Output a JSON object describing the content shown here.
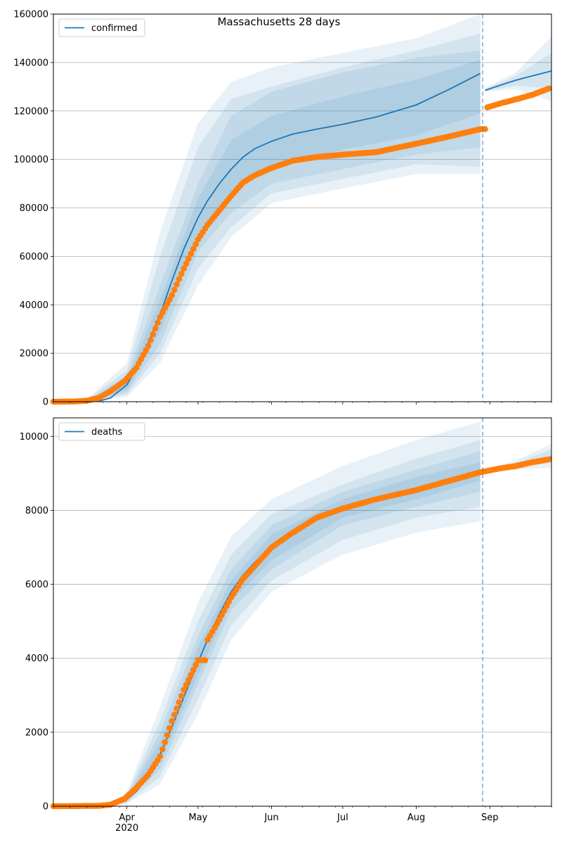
{
  "chart_data": [
    {
      "type": "line",
      "title": "Massachusetts 28 days",
      "xlabel": "",
      "ylabel": "",
      "x_ticks": [
        "Apr\n2020",
        "May",
        "Jun",
        "Jul",
        "Aug",
        "Sep"
      ],
      "x_range": [
        "2020-03-01",
        "2020-09-27"
      ],
      "y_ticks": [
        0,
        20000,
        40000,
        60000,
        80000,
        100000,
        120000,
        140000,
        160000
      ],
      "ylim": [
        0,
        160000
      ],
      "grid": "horizontal",
      "legend": {
        "position": "top-left",
        "entries": [
          "confirmed"
        ]
      },
      "forecast_start": "2020-08-29",
      "series": [
        {
          "name": "confirmed",
          "kind": "model-fit",
          "color": "#1f77b4",
          "x": [
            "2020-03-01",
            "2020-03-15",
            "2020-03-20",
            "2020-03-25",
            "2020-04-01",
            "2020-04-05",
            "2020-04-10",
            "2020-04-15",
            "2020-04-20",
            "2020-04-25",
            "2020-05-01",
            "2020-05-05",
            "2020-05-10",
            "2020-05-15",
            "2020-05-20",
            "2020-05-25",
            "2020-06-01",
            "2020-06-10",
            "2020-06-20",
            "2020-07-01",
            "2020-07-15",
            "2020-08-01",
            "2020-08-15",
            "2020-08-28"
          ],
          "values": [
            0,
            0,
            200,
            1500,
            7000,
            14000,
            24000,
            36000,
            50000,
            63000,
            76000,
            83000,
            90000,
            96000,
            101000,
            104500,
            107500,
            110500,
            112500,
            114500,
            117500,
            122500,
            129000,
            135500
          ]
        },
        {
          "name": "confirmed",
          "kind": "forecast",
          "color": "#1f77b4",
          "x": [
            "2020-08-30",
            "2020-09-05",
            "2020-09-12",
            "2020-09-19",
            "2020-09-27"
          ],
          "values": [
            128500,
            130500,
            132700,
            134500,
            136500
          ]
        },
        {
          "name": "confirmed",
          "kind": "observed",
          "color": "#ff7f0e",
          "x": [
            "2020-03-01",
            "2020-03-10",
            "2020-03-15",
            "2020-03-20",
            "2020-03-25",
            "2020-03-31",
            "2020-04-05",
            "2020-04-10",
            "2020-04-15",
            "2020-04-20",
            "2020-04-25",
            "2020-05-01",
            "2020-05-05",
            "2020-05-10",
            "2020-05-15",
            "2020-05-20",
            "2020-05-25",
            "2020-06-01",
            "2020-06-10",
            "2020-06-20",
            "2020-07-01",
            "2020-07-15",
            "2020-08-01",
            "2020-08-15",
            "2020-08-28",
            "2020-08-31",
            "2020-09-05",
            "2020-09-12",
            "2020-09-19",
            "2020-09-26"
          ],
          "values": [
            0,
            100,
            400,
            1500,
            4300,
            8500,
            14000,
            23000,
            35000,
            44000,
            55000,
            67000,
            73000,
            79000,
            85000,
            90500,
            93500,
            96500,
            99500,
            101000,
            102000,
            103000,
            106500,
            109500,
            112500,
            121500,
            123000,
            124800,
            126700,
            129300
          ]
        }
      ],
      "bands": [
        {
          "color": "#1f77b4",
          "x": [
            "2020-03-15",
            "2020-04-01",
            "2020-04-15",
            "2020-05-01",
            "2020-05-15",
            "2020-06-01",
            "2020-07-01",
            "2020-08-01",
            "2020-08-28"
          ],
          "upper": [
            400,
            11000,
            48000,
            90000,
            118000,
            128000,
            136000,
            142000,
            145000
          ],
          "lower": [
            0,
            4000,
            24000,
            62000,
            78000,
            90000,
            96000,
            102000,
            105000
          ]
        },
        {
          "color": "#1f77b4",
          "x": [
            "2020-03-15",
            "2020-04-01",
            "2020-04-15",
            "2020-05-01",
            "2020-05-15",
            "2020-06-01",
            "2020-07-01",
            "2020-08-01",
            "2020-08-28"
          ],
          "upper": [
            300,
            9000,
            42000,
            84000,
            108000,
            118000,
            126000,
            133000,
            141000
          ],
          "lower": [
            0,
            5000,
            29000,
            68000,
            86000,
            97000,
            104000,
            110000,
            119000
          ]
        },
        {
          "color": "#1f77b4",
          "x": [
            "2020-03-15",
            "2020-04-01",
            "2020-04-15",
            "2020-05-01",
            "2020-05-15",
            "2020-06-01",
            "2020-07-01",
            "2020-08-01",
            "2020-08-28"
          ],
          "upper": [
            700,
            13000,
            60000,
            105000,
            125000,
            130000,
            138000,
            145000,
            152000
          ],
          "lower": [
            0,
            3000,
            20000,
            55000,
            72000,
            86000,
            92000,
            98000,
            97000
          ]
        },
        {
          "color": "#1f77b4",
          "x": [
            "2020-03-15",
            "2020-04-01",
            "2020-04-15",
            "2020-05-01",
            "2020-05-15",
            "2020-06-01",
            "2020-07-01",
            "2020-08-01",
            "2020-08-28"
          ],
          "upper": [
            1000,
            16000,
            70000,
            115000,
            132000,
            138000,
            144000,
            150000,
            160000
          ],
          "lower": [
            0,
            2000,
            16000,
            48000,
            68000,
            82000,
            88000,
            94000,
            94000
          ]
        },
        {
          "color": "#1f77b4",
          "x": [
            "2020-08-30",
            "2020-09-12",
            "2020-09-27"
          ],
          "upper": [
            129500,
            136000,
            150500
          ],
          "lower": [
            128000,
            129000,
            124000
          ]
        },
        {
          "color": "#1f77b4",
          "x": [
            "2020-08-30",
            "2020-09-12",
            "2020-09-27"
          ],
          "upper": [
            129000,
            134500,
            144000
          ],
          "lower": [
            128200,
            130500,
            129000
          ]
        }
      ]
    },
    {
      "type": "line",
      "title": "",
      "xlabel": "",
      "ylabel": "",
      "x_ticks": [
        "Apr\n2020",
        "May",
        "Jun",
        "Jul",
        "Aug",
        "Sep"
      ],
      "x_range": [
        "2020-03-01",
        "2020-09-27"
      ],
      "y_ticks": [
        0,
        2000,
        4000,
        6000,
        8000,
        10000
      ],
      "ylim": [
        0,
        10500
      ],
      "grid": "horizontal",
      "legend": {
        "position": "top-left",
        "entries": [
          "deaths"
        ]
      },
      "forecast_start": "2020-08-29",
      "series": [
        {
          "name": "deaths",
          "kind": "model-fit",
          "color": "#1f77b4",
          "x": [
            "2020-03-01",
            "2020-03-25",
            "2020-04-01",
            "2020-04-05",
            "2020-04-10",
            "2020-04-15",
            "2020-04-20",
            "2020-04-25",
            "2020-05-01",
            "2020-05-05",
            "2020-05-10",
            "2020-05-15",
            "2020-05-20",
            "2020-05-25",
            "2020-06-01",
            "2020-06-10",
            "2020-06-20",
            "2020-07-01",
            "2020-07-15",
            "2020-08-01",
            "2020-08-15",
            "2020-08-28"
          ],
          "values": [
            0,
            50,
            180,
            400,
            800,
            1400,
            2150,
            2950,
            3900,
            4500,
            5200,
            5800,
            6250,
            6600,
            7000,
            7450,
            7800,
            8080,
            8350,
            8600,
            8850,
            9050
          ]
        },
        {
          "name": "deaths",
          "kind": "forecast",
          "color": "#1f77b4",
          "x": [
            "2020-08-30",
            "2020-09-05",
            "2020-09-12",
            "2020-09-19",
            "2020-09-27"
          ],
          "values": [
            9070,
            9140,
            9230,
            9330,
            9450
          ]
        },
        {
          "name": "deaths",
          "kind": "observed",
          "color": "#ff7f0e",
          "x": [
            "2020-03-01",
            "2020-03-20",
            "2020-03-25",
            "2020-03-31",
            "2020-04-05",
            "2020-04-10",
            "2020-04-15",
            "2020-04-20",
            "2020-04-25",
            "2020-05-01",
            "2020-05-05",
            "2020-05-10",
            "2020-05-15",
            "2020-05-20",
            "2020-05-25",
            "2020-06-01",
            "2020-06-10",
            "2020-06-20",
            "2020-07-01",
            "2020-07-15",
            "2020-08-01",
            "2020-08-15",
            "2020-08-28",
            "2020-09-05",
            "2020-09-12",
            "2020-09-19",
            "2020-09-26"
          ],
          "values": [
            0,
            10,
            40,
            200,
            500,
            850,
            1350,
            2300,
            3150,
            3950,
            4500,
            5050,
            5650,
            6150,
            6500,
            7000,
            7400,
            7800,
            8050,
            8300,
            8550,
            8800,
            9030,
            9130,
            9200,
            9300,
            9380
          ]
        }
      ],
      "bands": [
        {
          "color": "#1f77b4",
          "x": [
            "2020-03-25",
            "2020-04-01",
            "2020-04-15",
            "2020-05-01",
            "2020-05-15",
            "2020-06-01",
            "2020-07-01",
            "2020-08-01",
            "2020-08-28"
          ],
          "upper": [
            60,
            260,
            2000,
            4600,
            6400,
            7600,
            8500,
            9100,
            9600
          ],
          "lower": [
            40,
            120,
            1000,
            3300,
            5300,
            6400,
            7600,
            8100,
            8500
          ]
        },
        {
          "color": "#1f77b4",
          "x": [
            "2020-03-25",
            "2020-04-01",
            "2020-04-15",
            "2020-05-01",
            "2020-05-15",
            "2020-06-01",
            "2020-07-01",
            "2020-08-01",
            "2020-08-28"
          ],
          "upper": [
            55,
            230,
            1750,
            4300,
            6100,
            7350,
            8300,
            8900,
            9300
          ],
          "lower": [
            45,
            150,
            1200,
            3550,
            5550,
            6650,
            7800,
            8300,
            8800
          ]
        },
        {
          "color": "#1f77b4",
          "x": [
            "2020-03-25",
            "2020-04-01",
            "2020-04-15",
            "2020-05-01",
            "2020-05-15",
            "2020-06-01",
            "2020-07-01",
            "2020-08-01",
            "2020-08-28"
          ],
          "upper": [
            70,
            320,
            2300,
            5000,
            6800,
            7900,
            8700,
            9400,
            9900
          ],
          "lower": [
            30,
            90,
            800,
            2900,
            4900,
            6100,
            7200,
            7800,
            8100
          ]
        },
        {
          "color": "#1f77b4",
          "x": [
            "2020-03-25",
            "2020-04-01",
            "2020-04-15",
            "2020-05-01",
            "2020-05-15",
            "2020-06-01",
            "2020-07-01",
            "2020-08-01",
            "2020-08-28"
          ],
          "upper": [
            80,
            380,
            2700,
            5500,
            7300,
            8300,
            9200,
            9900,
            10400
          ],
          "lower": [
            20,
            70,
            600,
            2500,
            4500,
            5800,
            6800,
            7400,
            7700
          ]
        },
        {
          "color": "#1f77b4",
          "x": [
            "2020-08-30",
            "2020-09-12",
            "2020-09-27"
          ],
          "upper": [
            9100,
            9350,
            9800
          ],
          "lower": [
            9040,
            9100,
            9150
          ]
        },
        {
          "color": "#1f77b4",
          "x": [
            "2020-08-30",
            "2020-09-12",
            "2020-09-27"
          ],
          "upper": [
            9080,
            9280,
            9650
          ],
          "lower": [
            9055,
            9170,
            9280
          ]
        }
      ]
    }
  ]
}
